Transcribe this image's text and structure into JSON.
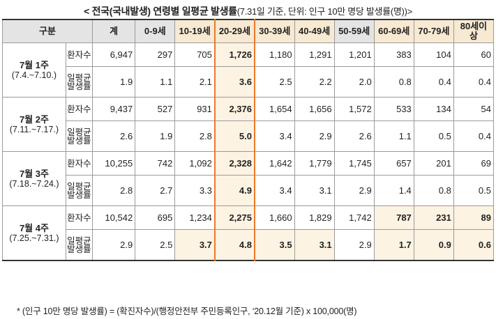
{
  "title_main": "< 전국(국내발생) 연령별 일평균 발생률",
  "title_sub": "(7.31일 기준, 단위: 인구 10만 명당 발생률(명))>",
  "headers": [
    "구분",
    "계",
    "0-9세",
    "10-19세",
    "20-29세",
    "30-39세",
    "40-49세",
    "50-59세",
    "60-69세",
    "70-79세",
    "80세이상"
  ],
  "row_labels": {
    "patients": "환자수",
    "rate": "일평균발생률"
  },
  "weeks": [
    {
      "label": "7월 1주",
      "range": "(7.4.~7.10.)",
      "patients": [
        "6,947",
        "297",
        "705",
        "1,726",
        "1,180",
        "1,291",
        "1,201",
        "383",
        "104",
        "60"
      ],
      "rate": [
        "1.9",
        "1.1",
        "2.1",
        "3.6",
        "2.5",
        "2.2",
        "2.0",
        "0.8",
        "0.4",
        "0.4"
      ]
    },
    {
      "label": "7월 2주",
      "range": "(7.11.~7.17.)",
      "patients": [
        "9,437",
        "527",
        "931",
        "2,376",
        "1,654",
        "1,656",
        "1,572",
        "533",
        "134",
        "54"
      ],
      "rate": [
        "2.6",
        "1.9",
        "2.8",
        "5.0",
        "3.4",
        "2.9",
        "2.6",
        "1.1",
        "0.5",
        "0.4"
      ]
    },
    {
      "label": "7월 3주",
      "range": "(7.18.~7.24.)",
      "patients": [
        "10,255",
        "742",
        "1,092",
        "2,328",
        "1,642",
        "1,779",
        "1,745",
        "657",
        "201",
        "69"
      ],
      "rate": [
        "2.8",
        "2.7",
        "3.3",
        "4.9",
        "3.4",
        "3.1",
        "2.9",
        "1.4",
        "0.8",
        "0.5"
      ]
    },
    {
      "label": "7월 4주",
      "range": "(7.25.~7.31.)",
      "patients": [
        "10,542",
        "695",
        "1,234",
        "2,275",
        "1,660",
        "1,829",
        "1,742",
        "787",
        "231",
        "89"
      ],
      "rate": [
        "2.9",
        "2.5",
        "3.7",
        "4.8",
        "3.5",
        "3.1",
        "2.9",
        "1.7",
        "0.9",
        "0.6"
      ]
    }
  ],
  "footnote": "* (인구 10만 명당 발생률) = (확진자수)/(행정안전부 주민등록인구, ‘20.12월 기준) x 100,000(명)",
  "colors": {
    "header_bg": "#e4e4e4",
    "highlight_bg": "#fdf3e3",
    "highlight_col_line": "#ec7a2c"
  }
}
